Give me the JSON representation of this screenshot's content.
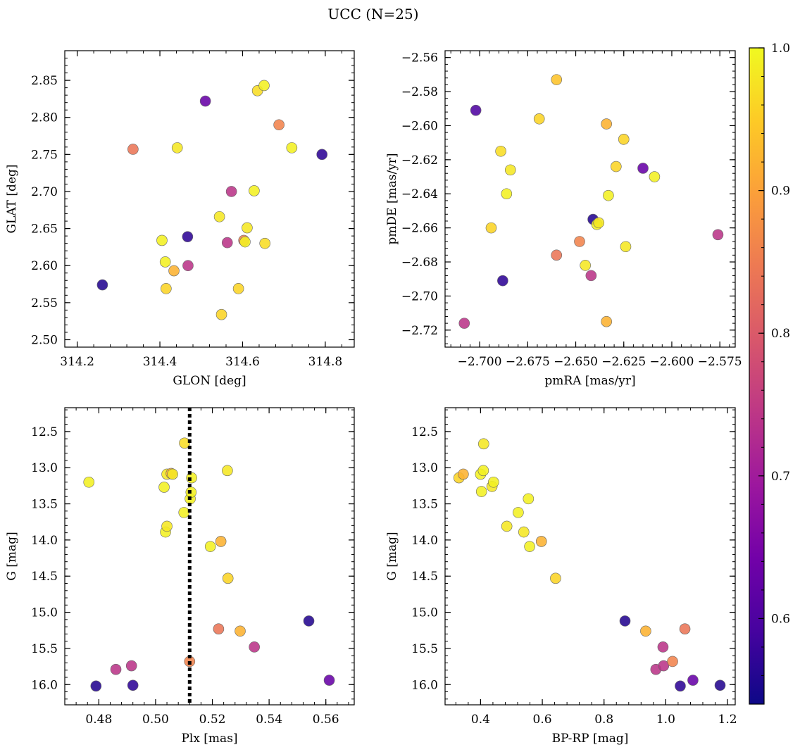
{
  "figure": {
    "title": "UCC (N=25)"
  },
  "chart_data": [
    {
      "type": "scatter",
      "panel": "top-left",
      "xlabel": "GLON [deg]",
      "ylabel": "GLAT [deg]",
      "xlim": [
        314.17,
        314.87
      ],
      "ylim": [
        2.49,
        2.89
      ],
      "y_inverted": false,
      "xticks": [
        314.2,
        314.4,
        314.6,
        314.8
      ],
      "xtick_labels": [
        "314.2",
        "314.4",
        "314.6",
        "314.8"
      ],
      "yticks": [
        2.5,
        2.55,
        2.6,
        2.65,
        2.7,
        2.75,
        2.8,
        2.85
      ],
      "ytick_labels": [
        "2.50",
        "2.55",
        "2.60",
        "2.65",
        "2.70",
        "2.75",
        "2.80",
        "2.85"
      ],
      "x": [
        314.261,
        314.335,
        314.442,
        314.405,
        314.413,
        314.415,
        314.434,
        314.467,
        314.468,
        314.51,
        314.544,
        314.549,
        314.563,
        314.573,
        314.59,
        314.603,
        314.606,
        314.611,
        314.628,
        314.636,
        314.652,
        314.654,
        314.688,
        314.719,
        314.792
      ],
      "y": [
        2.574,
        2.757,
        2.759,
        2.634,
        2.605,
        2.569,
        2.593,
        2.639,
        2.6,
        2.822,
        2.666,
        2.534,
        2.631,
        2.7,
        2.569,
        2.634,
        2.632,
        2.651,
        2.701,
        2.836,
        2.843,
        2.63,
        2.79,
        2.759,
        2.75
      ]
    },
    {
      "type": "scatter",
      "panel": "top-right",
      "xlabel": "pmRA [mas/yr]",
      "ylabel": "pmDE [mas/yr]",
      "xlim": [
        -2.718,
        -2.567
      ],
      "ylim": [
        -2.73,
        -2.556
      ],
      "y_inverted": false,
      "xticks": [
        -2.7,
        -2.675,
        -2.65,
        -2.625,
        -2.6,
        -2.575
      ],
      "xtick_labels": [
        "−2.700",
        "−2.675",
        "−2.650",
        "−2.625",
        "−2.600",
        "−2.575"
      ],
      "yticks": [
        -2.72,
        -2.7,
        -2.68,
        -2.66,
        -2.64,
        -2.62,
        -2.6,
        -2.58,
        -2.56
      ],
      "ytick_labels": [
        "−2.72",
        "−2.70",
        "−2.68",
        "−2.66",
        "−2.64",
        "−2.62",
        "−2.60",
        "−2.58",
        "−2.56"
      ],
      "x": [
        -2.708,
        -2.702,
        -2.694,
        -2.689,
        -2.688,
        -2.686,
        -2.684,
        -2.669,
        -2.66,
        -2.66,
        -2.648,
        -2.645,
        -2.642,
        -2.641,
        -2.639,
        -2.638,
        -2.634,
        -2.634,
        -2.633,
        -2.629,
        -2.625,
        -2.624,
        -2.615,
        -2.609,
        -2.576
      ],
      "y": [
        -2.716,
        -2.591,
        -2.66,
        -2.615,
        -2.691,
        -2.64,
        -2.626,
        -2.596,
        -2.573,
        -2.676,
        -2.668,
        -2.682,
        -2.688,
        -2.655,
        -2.658,
        -2.657,
        -2.715,
        -2.599,
        -2.641,
        -2.624,
        -2.608,
        -2.671,
        -2.625,
        -2.63,
        -2.664
      ]
    },
    {
      "type": "scatter",
      "panel": "bottom-left",
      "xlabel": "Plx [mas]",
      "ylabel": "G [mag]",
      "xlim": [
        0.468,
        0.57
      ],
      "ylim": [
        16.28,
        12.17
      ],
      "y_inverted": true,
      "xticks": [
        0.48,
        0.5,
        0.52,
        0.54,
        0.56
      ],
      "xtick_labels": [
        "0.48",
        "0.50",
        "0.52",
        "0.54",
        "0.56"
      ],
      "yticks": [
        12.5,
        13.0,
        13.5,
        14.0,
        14.5,
        15.0,
        15.5,
        16.0
      ],
      "ytick_labels": [
        "12.5",
        "13.0",
        "13.5",
        "14.0",
        "14.5",
        "15.0",
        "15.5",
        "16.0"
      ],
      "vline_x": 0.512,
      "x": [
        0.4765,
        0.479,
        0.486,
        0.4915,
        0.492,
        0.503,
        0.5035,
        0.504,
        0.504,
        0.5055,
        0.506,
        0.51,
        0.5102,
        0.512,
        0.5122,
        0.5125,
        0.5127,
        0.5193,
        0.5222,
        0.523,
        0.5253,
        0.5255,
        0.5298,
        0.5348,
        0.554
      ],
      "y": [
        13.2,
        16.02,
        15.79,
        15.74,
        16.01,
        13.27,
        13.89,
        13.81,
        13.09,
        13.08,
        13.09,
        13.62,
        12.66,
        15.68,
        13.43,
        13.34,
        13.14,
        14.09,
        15.23,
        14.02,
        13.04,
        14.53,
        15.26,
        15.48,
        15.12
      ],
      "x_extra": [
        0.5612
      ],
      "y_extra": [
        15.94
      ]
    },
    {
      "type": "scatter",
      "panel": "bottom-right",
      "xlabel": "BP-RP [mag]",
      "ylabel": "G [mag]",
      "xlim": [
        0.285,
        1.225
      ],
      "ylim": [
        16.28,
        12.17
      ],
      "y_inverted": true,
      "xticks": [
        0.4,
        0.6,
        0.8,
        1.0,
        1.2
      ],
      "xtick_labels": [
        "0.4",
        "0.6",
        "0.8",
        "1.0",
        "1.2"
      ],
      "yticks": [
        12.5,
        13.0,
        13.5,
        14.0,
        14.5,
        15.0,
        15.5,
        16.0
      ],
      "ytick_labels": [
        "12.5",
        "13.0",
        "13.5",
        "14.0",
        "14.5",
        "15.0",
        "15.5",
        "16.0"
      ],
      "x": [
        0.33,
        0.344,
        0.4,
        0.403,
        0.41,
        0.409,
        0.437,
        0.442,
        0.485,
        0.522,
        0.54,
        0.555,
        0.559,
        0.597,
        0.643,
        0.868,
        0.935,
        0.968,
        0.991,
        0.993,
        1.022,
        1.047,
        1.062,
        1.088,
        1.176
      ],
      "y": [
        13.14,
        13.09,
        13.09,
        13.33,
        12.67,
        13.04,
        13.26,
        13.2,
        13.81,
        13.62,
        13.89,
        13.43,
        14.09,
        14.02,
        14.53,
        15.12,
        15.26,
        15.79,
        15.48,
        15.74,
        15.68,
        16.02,
        15.23,
        15.94,
        16.01
      ]
    }
  ],
  "membership": {
    "panel0": [
      0.56,
      0.84,
      0.98,
      0.99,
      0.99,
      0.96,
      0.92,
      0.57,
      0.74,
      0.63,
      0.98,
      0.96,
      0.74,
      0.74,
      0.96,
      0.86,
      0.99,
      0.98,
      0.99,
      0.97,
      0.99,
      0.97,
      0.86,
      0.99,
      0.57
    ],
    "panel1": [
      0.74,
      0.6,
      0.96,
      0.97,
      0.57,
      0.99,
      0.98,
      0.96,
      0.94,
      0.84,
      0.86,
      0.98,
      0.74,
      0.56,
      0.99,
      0.98,
      0.92,
      0.92,
      0.99,
      0.96,
      0.96,
      0.98,
      0.63,
      0.99,
      0.74
    ],
    "panel2": [
      0.99,
      0.56,
      0.74,
      0.74,
      0.57,
      0.99,
      0.99,
      0.98,
      0.98,
      0.92,
      0.98,
      0.99,
      0.97,
      0.86,
      0.99,
      0.99,
      0.99,
      0.99,
      0.84,
      0.92,
      0.98,
      0.96,
      0.92,
      0.74,
      0.56
    ],
    "panel2_extra": [
      0.63
    ],
    "panel3": [
      0.96,
      0.92,
      0.99,
      0.99,
      0.98,
      0.99,
      0.98,
      0.99,
      0.98,
      0.99,
      0.98,
      0.99,
      0.99,
      0.92,
      0.96,
      0.56,
      0.92,
      0.74,
      0.74,
      0.74,
      0.86,
      0.57,
      0.84,
      0.63,
      0.56
    ]
  },
  "colorbar": {
    "range": [
      0.54,
      1.0
    ],
    "ticks": [
      0.6,
      0.7,
      0.8,
      0.9,
      1.0
    ],
    "tick_labels": [
      "0.6",
      "0.7",
      "0.8",
      "0.9",
      "1.0"
    ],
    "colormap": "plasma",
    "stops": [
      "#0d0887",
      "#46039f",
      "#7201a8",
      "#9c179e",
      "#bd3786",
      "#d8576b",
      "#ed7953",
      "#fb9f3a",
      "#fdca26",
      "#f0f921"
    ]
  }
}
